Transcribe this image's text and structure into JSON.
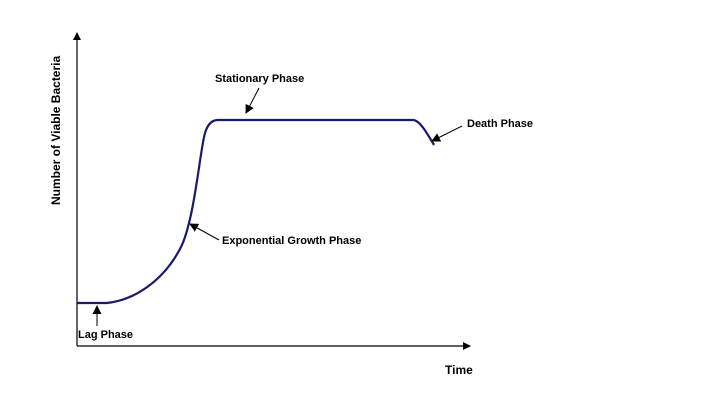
{
  "diagram": {
    "axes": {
      "x_label": "Time",
      "y_label": "Number of Viable Bacteria"
    },
    "phases": [
      {
        "id": "lag",
        "label": "Lag Phase"
      },
      {
        "id": "exponential",
        "label": "Exponential Growth Phase"
      },
      {
        "id": "stationary",
        "label": "Stationary Phase"
      },
      {
        "id": "death",
        "label": "Death Phase"
      }
    ],
    "colors": {
      "curve": "#1a1a6e",
      "axes": "#000000",
      "text": "#000000"
    }
  }
}
